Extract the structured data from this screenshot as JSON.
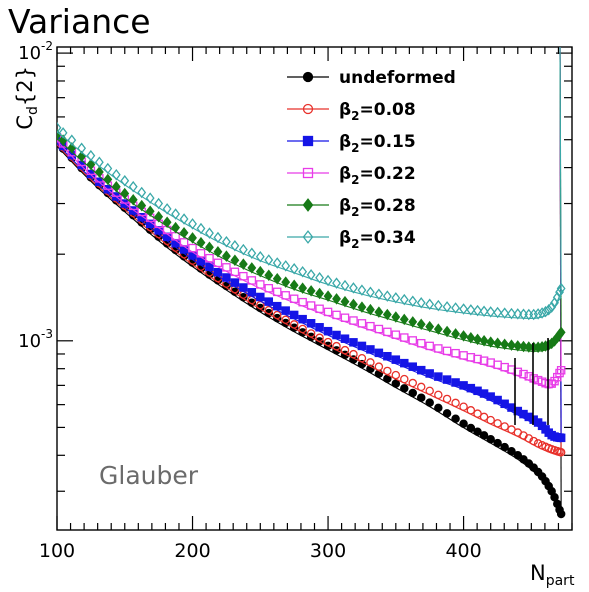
{
  "page_title": "Variance",
  "annotation": "Glauber",
  "chart_data": {
    "type": "scatter",
    "title": "",
    "xlabel": "N",
    "xlabel_sub": "part",
    "ylabel": "C",
    "ylabel_sub": "d",
    "ylabel_suffix": "{2}",
    "x_scale": "linear",
    "y_scale": "log",
    "xlim": [
      100,
      480
    ],
    "ylim": [
      0.00022,
      0.0105
    ],
    "x_ticks": [
      100,
      200,
      300,
      400
    ],
    "x_tick_labels": [
      "100",
      "200",
      "300",
      "400"
    ],
    "y_ticks": [
      0.001,
      0.01
    ],
    "y_tick_labels": [
      {
        "base": "10",
        "exp": "-3"
      },
      {
        "base": "10",
        "exp": "-2"
      }
    ],
    "legend_position": "top-right",
    "series": [
      {
        "name": "undeformed",
        "color": "#000000",
        "marker": "filled-circle",
        "x": [
          100,
          125,
          150,
          175,
          200,
          225,
          250,
          275,
          300,
          325,
          350,
          375,
          400,
          420,
          440,
          455,
          465,
          472
        ],
        "y": [
          0.0049,
          0.0037,
          0.0029,
          0.0023,
          0.00187,
          0.00155,
          0.0013,
          0.00111,
          0.00096,
          0.00083,
          0.00071,
          0.00061,
          0.000515,
          0.000455,
          0.0004,
          0.00035,
          0.0003,
          0.00025
        ]
      },
      {
        "name": "β",
        "name_sub": "2",
        "name_suffix": "=0.08",
        "color": "#e8312b",
        "marker": "open-circle",
        "x": [
          100,
          125,
          150,
          175,
          200,
          225,
          250,
          275,
          300,
          325,
          350,
          375,
          400,
          420,
          440,
          455,
          465,
          472
        ],
        "y": [
          0.00495,
          0.00375,
          0.00295,
          0.00235,
          0.0019,
          0.00158,
          0.00133,
          0.00114,
          0.00099,
          0.00087,
          0.00076,
          0.00067,
          0.00059,
          0.00053,
          0.00048,
          0.00044,
          0.00042,
          0.00041
        ]
      },
      {
        "name": "β",
        "name_sub": "2",
        "name_suffix": "=0.15",
        "color": "#1515e6",
        "marker": "filled-square",
        "x": [
          100,
          125,
          150,
          175,
          200,
          225,
          250,
          275,
          300,
          325,
          350,
          375,
          400,
          420,
          440,
          455,
          465,
          472
        ],
        "y": [
          0.005,
          0.0038,
          0.003,
          0.00242,
          0.00198,
          0.00166,
          0.00142,
          0.00123,
          0.00108,
          0.00096,
          0.00086,
          0.00077,
          0.0007,
          0.00064,
          0.00057,
          0.00052,
          0.00047,
          0.00046
        ]
      },
      {
        "name": "β",
        "name_sub": "2",
        "name_suffix": "=0.22",
        "color": "#e83ce8",
        "marker": "open-square",
        "x": [
          100,
          125,
          150,
          175,
          200,
          225,
          250,
          275,
          300,
          325,
          350,
          375,
          400,
          420,
          440,
          455,
          465,
          472
        ],
        "y": [
          0.0051,
          0.0039,
          0.0031,
          0.00255,
          0.0021,
          0.0018,
          0.00157,
          0.0014,
          0.00126,
          0.00115,
          0.00105,
          0.00096,
          0.00089,
          0.00084,
          0.00078,
          0.00073,
          0.00071,
          0.00079
        ]
      },
      {
        "name": "β",
        "name_sub": "2",
        "name_suffix": "=0.28",
        "color": "#177a17",
        "marker": "filled-diamond",
        "x": [
          100,
          125,
          150,
          175,
          200,
          225,
          250,
          275,
          300,
          325,
          350,
          375,
          400,
          420,
          440,
          455,
          465,
          472
        ],
        "y": [
          0.0052,
          0.0041,
          0.00325,
          0.0027,
          0.00228,
          0.00197,
          0.00174,
          0.00156,
          0.00143,
          0.00131,
          0.00121,
          0.00112,
          0.00104,
          0.00099,
          0.00096,
          0.00095,
          0.00098,
          0.00107
        ]
      },
      {
        "name": "β",
        "name_sub": "2",
        "name_suffix": "=0.34",
        "color": "#3aa8a8",
        "marker": "open-diamond",
        "x": [
          100,
          125,
          150,
          175,
          200,
          225,
          250,
          275,
          300,
          325,
          350,
          375,
          400,
          420,
          440,
          455,
          465,
          472
        ],
        "y": [
          0.0055,
          0.0044,
          0.0036,
          0.003,
          0.00255,
          0.00221,
          0.00196,
          0.00178,
          0.00162,
          0.0015,
          0.00141,
          0.00134,
          0.00129,
          0.00126,
          0.00124,
          0.00124,
          0.00131,
          0.00152
        ]
      }
    ]
  }
}
